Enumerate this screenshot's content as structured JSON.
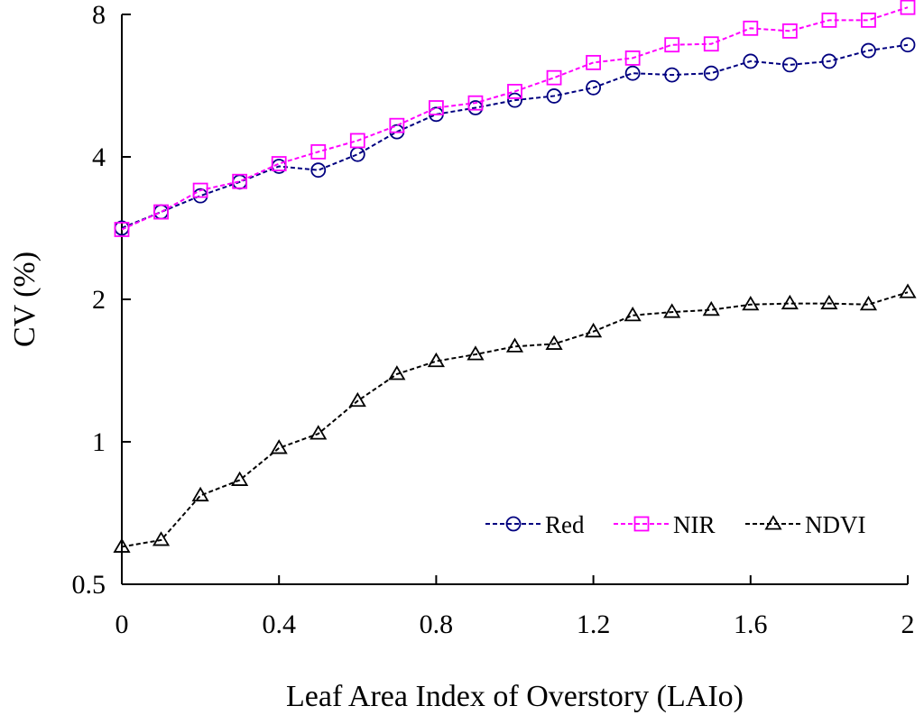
{
  "chart_data": {
    "type": "line",
    "xlabel": "Leaf Area Index of Overstory (LAIo)",
    "ylabel": "CV (%)",
    "y_scale": "log2",
    "xlim": [
      0,
      2
    ],
    "ylim": [
      0.5,
      8
    ],
    "x_ticks": [
      "0",
      "0.4",
      "0.8",
      "1.2",
      "1.6",
      "2"
    ],
    "x_tick_values": [
      0,
      0.4,
      0.8,
      1.2,
      1.6,
      2
    ],
    "y_ticks": [
      "0.5",
      "1",
      "2",
      "4",
      "8"
    ],
    "y_tick_values": [
      0.5,
      1,
      2,
      4,
      8
    ],
    "x": [
      0,
      0.1,
      0.2,
      0.3,
      0.4,
      0.5,
      0.6,
      0.7,
      0.8,
      0.9,
      1.0,
      1.1,
      1.2,
      1.3,
      1.4,
      1.5,
      1.6,
      1.7,
      1.8,
      1.9,
      2.0
    ],
    "legend_position": "bottom-right",
    "grid": false,
    "series": [
      {
        "name": "Red",
        "color": "#000080",
        "marker": "circle",
        "values": [
          2.83,
          3.06,
          3.31,
          3.54,
          3.82,
          3.75,
          4.05,
          4.52,
          4.92,
          5.08,
          5.27,
          5.38,
          5.6,
          6.01,
          5.96,
          6.01,
          6.37,
          6.26,
          6.37,
          6.71,
          6.9
        ]
      },
      {
        "name": "NIR",
        "color": "#ff00ff",
        "marker": "square",
        "values": [
          2.81,
          3.06,
          3.4,
          3.55,
          3.87,
          4.1,
          4.33,
          4.66,
          5.08,
          5.2,
          5.5,
          5.88,
          6.33,
          6.47,
          6.9,
          6.93,
          7.48,
          7.38,
          7.78,
          7.78,
          8.28
        ]
      },
      {
        "name": "NDVI",
        "color": "#000000",
        "marker": "triangle",
        "values": [
          0.6,
          0.62,
          0.77,
          0.83,
          0.97,
          1.04,
          1.22,
          1.39,
          1.48,
          1.53,
          1.59,
          1.61,
          1.71,
          1.85,
          1.88,
          1.9,
          1.95,
          1.96,
          1.96,
          1.95,
          2.07
        ]
      }
    ]
  }
}
